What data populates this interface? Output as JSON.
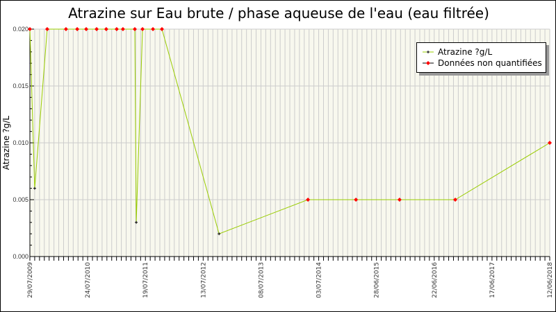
{
  "chart_data": {
    "type": "line",
    "title": "Atrazine sur Eau brute / phase aqueuse de l'eau (eau filtrée)",
    "ylabel": "Atrazine ?g/L",
    "xlabel": "",
    "ylim": [
      0,
      0.02
    ],
    "xlim": [
      "2009-07-29",
      "2018-06-12"
    ],
    "yticks": [
      "0.000",
      "0.005",
      "0.010",
      "0.015",
      "0.020"
    ],
    "xticks": [
      "29/07/2009",
      "24/07/2010",
      "19/07/2011",
      "13/07/2012",
      "08/07/2013",
      "03/07/2014",
      "28/06/2015",
      "22/06/2016",
      "17/06/2017",
      "12/06/2018"
    ],
    "grid": true,
    "legend_position": "top-right",
    "legend": [
      "Atrazine ?g/L",
      "Données non quantifiées"
    ],
    "colors": {
      "line": "#99cc00",
      "quantified": "#000000",
      "non_quantified": "#ff0000",
      "background": "#f8f8ee",
      "grid": "#cccccc"
    },
    "points": [
      {
        "date": "2009-07-29",
        "value": 0.02,
        "quantified": false
      },
      {
        "date": "2009-08-28",
        "value": 0.006,
        "quantified": true
      },
      {
        "date": "2009-11-14",
        "value": 0.02,
        "quantified": false
      },
      {
        "date": "2010-03-11",
        "value": 0.02,
        "quantified": false
      },
      {
        "date": "2010-05-20",
        "value": 0.02,
        "quantified": false
      },
      {
        "date": "2010-07-15",
        "value": 0.02,
        "quantified": false
      },
      {
        "date": "2010-09-18",
        "value": 0.02,
        "quantified": false
      },
      {
        "date": "2010-11-17",
        "value": 0.02,
        "quantified": false
      },
      {
        "date": "2011-01-21",
        "value": 0.02,
        "quantified": false
      },
      {
        "date": "2011-03-01",
        "value": 0.02,
        "quantified": false
      },
      {
        "date": "2011-05-14",
        "value": 0.02,
        "quantified": false
      },
      {
        "date": "2011-05-23",
        "value": 0.003,
        "quantified": true
      },
      {
        "date": "2011-07-01",
        "value": 0.02,
        "quantified": false
      },
      {
        "date": "2011-09-04",
        "value": 0.02,
        "quantified": false
      },
      {
        "date": "2011-10-30",
        "value": 0.02,
        "quantified": false
      },
      {
        "date": "2012-10-20",
        "value": 0.002,
        "quantified": true
      },
      {
        "date": "2014-04-27",
        "value": 0.005,
        "quantified": false
      },
      {
        "date": "2015-02-20",
        "value": 0.005,
        "quantified": false
      },
      {
        "date": "2015-11-19",
        "value": 0.005,
        "quantified": false
      },
      {
        "date": "2016-10-31",
        "value": 0.005,
        "quantified": false
      },
      {
        "date": "2018-06-12",
        "value": 0.01,
        "quantified": false
      }
    ]
  }
}
